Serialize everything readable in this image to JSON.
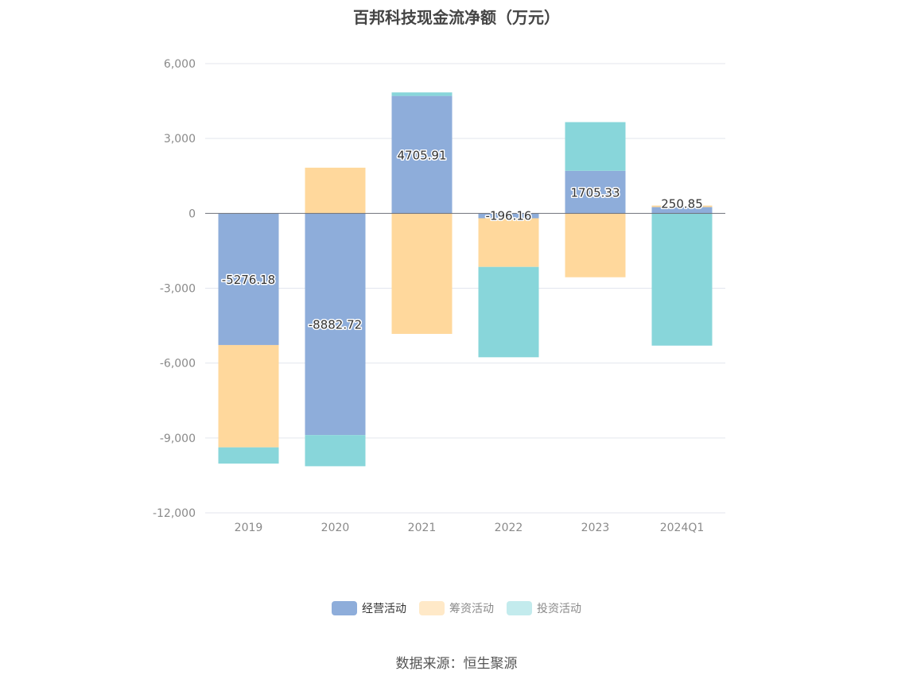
{
  "chart_data": {
    "type": "bar",
    "stacked": true,
    "title": "百邦科技现金流净额（万元）",
    "categories": [
      "2019",
      "2020",
      "2021",
      "2022",
      "2023",
      "2024Q1"
    ],
    "yticks": [
      6000,
      3000,
      0,
      -3000,
      -6000,
      -9000,
      -12000
    ],
    "ytick_labels": [
      "6,000",
      "3,000",
      "0",
      "-3,000",
      "-6,000",
      "-9,000",
      "-12,000"
    ],
    "ylim": [
      -12000,
      6000
    ],
    "series": [
      {
        "name": "经营活动",
        "color": "#8EADDA",
        "values": [
          -5276.18,
          -8882.72,
          4705.91,
          -196.16,
          1705.33,
          250.85
        ]
      },
      {
        "name": "筹资活动",
        "color": "#FFD89C",
        "values": [
          -4100,
          1830,
          -4830,
          -1950,
          -2560,
          60
        ]
      },
      {
        "name": "投资活动",
        "color": "#88D6DA",
        "values": [
          -650,
          -1250,
          140,
          -3620,
          1950,
          -5300
        ]
      }
    ],
    "data_labels": [
      "-5276.18",
      "-8882.72",
      "4705.91",
      "-196.16",
      "1705.33",
      "250.85"
    ],
    "legend": [
      {
        "label": "经营活动",
        "color": "#8EADDA",
        "swatch": "#8EADDA"
      },
      {
        "label": "筹资活动",
        "color": "#FFD89C",
        "swatch": "#FFE9C8"
      },
      {
        "label": "投资活动",
        "color": "#88D6DA",
        "swatch": "#C3EBED"
      }
    ],
    "source": "数据来源：恒生聚源"
  }
}
